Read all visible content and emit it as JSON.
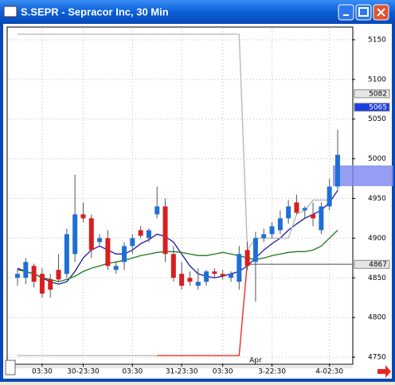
{
  "chart_data": {
    "type": "candlestick",
    "title": "S.SEPR - Sepracor Inc, 30 Min",
    "categories": [
      null,
      null,
      null,
      "03:30",
      null,
      null,
      null,
      null,
      "30-23:30",
      null,
      null,
      null,
      null,
      null,
      "03:30",
      null,
      null,
      null,
      null,
      null,
      "31-23:30",
      null,
      null,
      null,
      null,
      "03:30",
      null,
      null,
      null,
      null,
      null,
      "3-22:30",
      null,
      null,
      null,
      null,
      null,
      null,
      "4-02:30",
      null
    ],
    "x_annotation": "Apr",
    "series": [
      {
        "open": [
          4850,
          4850,
          4865,
          4855,
          4848,
          4860,
          4855,
          4880,
          4930,
          4925,
          4895,
          4900,
          4860,
          4870,
          4890,
          4910,
          4900,
          4930,
          4940,
          4880,
          4855,
          4850,
          4840,
          4845,
          4858,
          4855,
          4850,
          4845,
          4885,
          4870,
          4900,
          4905,
          4910,
          4925,
          4945,
          4935,
          4930,
          4910,
          4940,
          4965
        ],
        "high": [
          4862,
          4875,
          4868,
          4862,
          4855,
          4880,
          4912,
          4980,
          4945,
          4930,
          4905,
          4910,
          4870,
          4895,
          4905,
          4915,
          4912,
          4965,
          4950,
          4890,
          4870,
          4858,
          4862,
          4860,
          4862,
          4860,
          4858,
          4890,
          4895,
          4908,
          4912,
          4920,
          4935,
          4948,
          4955,
          4940,
          4945,
          4945,
          4975,
          5037
        ],
        "low": [
          4840,
          4842,
          4838,
          4825,
          4825,
          4845,
          4850,
          4870,
          4920,
          4875,
          4890,
          4860,
          4855,
          4860,
          4880,
          4900,
          4895,
          4925,
          4870,
          4845,
          4835,
          4840,
          4835,
          4840,
          4850,
          4848,
          4845,
          4835,
          4860,
          4820,
          4895,
          4900,
          4905,
          4918,
          4930,
          4925,
          4915,
          4905,
          4935,
          4960
        ],
        "close": [
          4855,
          4870,
          4845,
          4830,
          4835,
          4848,
          4905,
          4930,
          4925,
          4885,
          4900,
          4865,
          4865,
          4890,
          4900,
          4903,
          4910,
          4940,
          4880,
          4850,
          4840,
          4845,
          4845,
          4858,
          4855,
          4852,
          4855,
          4880,
          4865,
          4900,
          4905,
          4915,
          4925,
          4940,
          4932,
          4938,
          4925,
          4940,
          4965,
          5005
        ]
      }
    ],
    "up_color": "#1f6fd6",
    "down_color": "#d91e1e",
    "lines": [
      {
        "color": "#1a1aa0",
        "values": [
          4862,
          4858,
          4855,
          4850,
          4845,
          4842,
          4845,
          4858,
          4875,
          4885,
          4890,
          4885,
          4880,
          4880,
          4885,
          4893,
          4898,
          4905,
          4902,
          4895,
          4880,
          4865,
          4855,
          4852,
          4850,
          4852,
          4855,
          4858,
          4865,
          4875,
          4885,
          4893,
          4900,
          4910,
          4918,
          4925,
          4930,
          4935,
          4945,
          4960
        ]
      },
      {
        "color": "#1f7a1f",
        "values": [
          4860,
          4858,
          4855,
          4850,
          4848,
          4845,
          4848,
          4852,
          4858,
          4862,
          4865,
          4868,
          4870,
          4872,
          4875,
          4878,
          4880,
          4882,
          4883,
          4883,
          4882,
          4880,
          4878,
          4878,
          4880,
          4882,
          4880,
          4878,
          4875,
          4873,
          4875,
          4878,
          4880,
          4882,
          4883,
          4883,
          4885,
          4890,
          4900,
          4910
        ]
      },
      {
        "color": "#b4b4b4",
        "values": [
          5157,
          5157,
          5157,
          5157,
          5157,
          5157,
          5157,
          5157,
          5157,
          5157,
          5157,
          5157,
          5157,
          5157,
          5157,
          5157,
          5157,
          5157,
          5157,
          5157,
          5157,
          5157,
          5157,
          5157,
          5157,
          5157,
          5157,
          5157,
          4885,
          4900,
          4900,
          4900,
          4900,
          4900,
          4930,
          4935,
          4948,
          4948,
          4948,
          null
        ]
      },
      {
        "color": "#b4b4b4",
        "values": [
          4752,
          4752,
          4752,
          4752,
          4752,
          4752,
          4752,
          4752,
          4752,
          4752,
          4752,
          4752,
          4752,
          4752,
          4752,
          4752,
          4752,
          4752,
          null,
          null,
          null,
          null,
          null,
          null,
          null,
          null,
          null,
          null,
          null,
          null,
          null,
          null,
          null,
          null,
          null,
          null,
          null,
          null,
          null,
          null
        ]
      },
      {
        "color": "#ee1c1c",
        "values": [
          null,
          null,
          null,
          null,
          null,
          null,
          null,
          null,
          null,
          null,
          null,
          null,
          null,
          null,
          null,
          null,
          null,
          4752,
          4752,
          4752,
          4752,
          4752,
          4752,
          4752,
          4752,
          4752,
          4752,
          4752,
          4870,
          null,
          null,
          null,
          null,
          null,
          null,
          null,
          null,
          null,
          null,
          null
        ]
      }
    ],
    "markers": [
      {
        "value": 5082,
        "color": "#e6e6e6"
      },
      {
        "value": 5065,
        "color": "#1a3fe0"
      },
      {
        "value": 4867,
        "color": "#e6e6e6"
      }
    ],
    "ylim": [
      4742,
      5165
    ],
    "yticks": [
      4750,
      4800,
      4850,
      4900,
      4950,
      5000,
      5050,
      5100,
      5150
    ],
    "grid": true
  }
}
